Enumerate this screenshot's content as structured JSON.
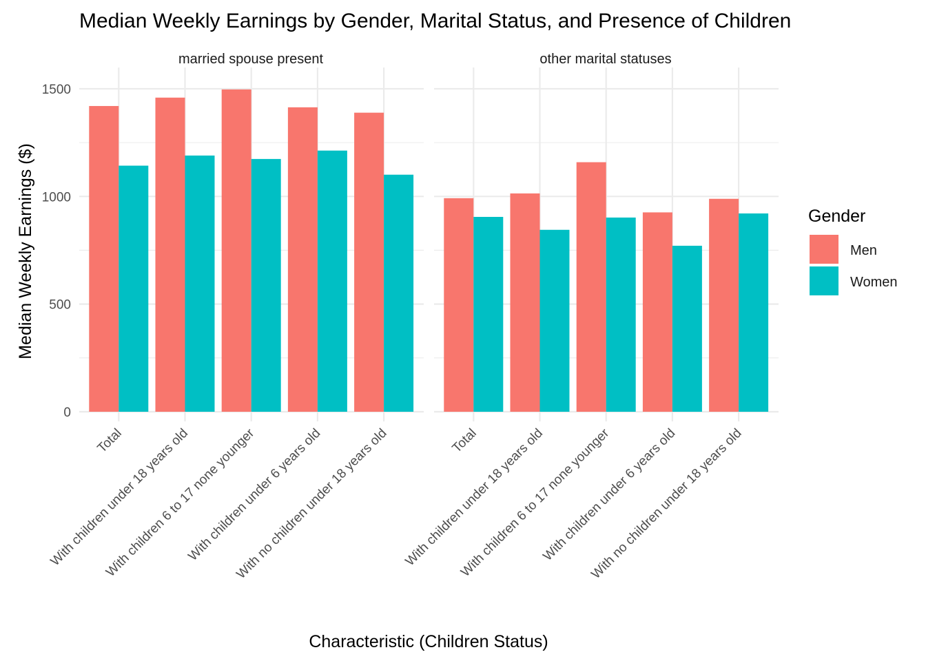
{
  "chart_data": {
    "type": "bar",
    "title": "Median Weekly Earnings by Gender, Marital Status, and Presence of Children",
    "xlabel": "Characteristic (Children Status)",
    "ylabel": "Median Weekly Earnings ($)",
    "ylim": [
      0,
      1500
    ],
    "yticks": [
      0,
      500,
      1000,
      1500
    ],
    "grid": true,
    "legend": {
      "title": "Gender",
      "placement": "right",
      "entries": [
        {
          "name": "Men",
          "color": "#F8766D"
        },
        {
          "name": "Women",
          "color": "#00BFC4"
        }
      ]
    },
    "categories": [
      "Total",
      "With children under 18 years old",
      "With children 6 to 17 none younger",
      "With children under 6 years old",
      "With no children under 18 years old"
    ],
    "facets": [
      {
        "label": "married spouse present",
        "series": [
          {
            "name": "Men",
            "values": [
              1420,
              1459,
              1497,
              1414,
              1389
            ]
          },
          {
            "name": "Women",
            "values": [
              1143,
              1190,
              1174,
              1213,
              1101
            ]
          }
        ]
      },
      {
        "label": "other marital statuses",
        "series": [
          {
            "name": "Men",
            "values": [
              992,
              1014,
              1159,
              926,
              989
            ]
          },
          {
            "name": "Women",
            "values": [
              905,
              845,
              902,
              771,
              921
            ]
          }
        ]
      }
    ]
  }
}
